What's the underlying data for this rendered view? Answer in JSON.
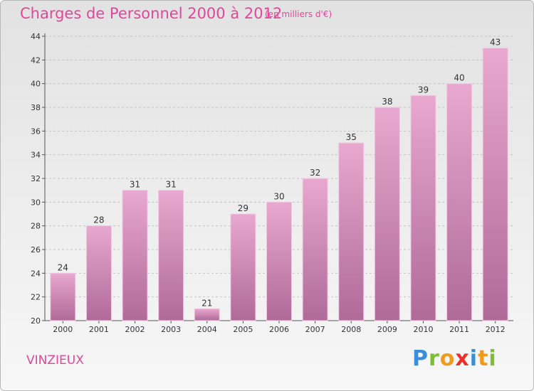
{
  "header": {
    "title": "Charges de Personnel 2000 à 2012",
    "subtitle": "(en milliers d'€)"
  },
  "footer": {
    "commune": "VINZIEUX",
    "logo_letters": [
      "P",
      "r",
      "o",
      "x",
      "i",
      "t",
      "i"
    ],
    "logo_colors": [
      "#3a8fd8",
      "#7cbf2f",
      "#f29a1d",
      "#e8312a",
      "#3a8fd8",
      "#f29a1d",
      "#7cbf2f"
    ]
  },
  "chart_data": {
    "type": "bar",
    "title": "Charges de Personnel 2000 à 2012",
    "categories": [
      "2000",
      "2001",
      "2002",
      "2003",
      "2004",
      "2005",
      "2006",
      "2007",
      "2008",
      "2009",
      "2010",
      "2011",
      "2012"
    ],
    "values": [
      24,
      28,
      31,
      31,
      21,
      29,
      30,
      32,
      35,
      38,
      39,
      40,
      43
    ],
    "ylim": [
      20,
      44
    ],
    "yticks": [
      20,
      22,
      24,
      26,
      28,
      30,
      32,
      34,
      36,
      38,
      40,
      42,
      44
    ],
    "grid": true,
    "bar_color_top": "#e8a8cf",
    "bar_color_bottom": "#b06a98"
  }
}
